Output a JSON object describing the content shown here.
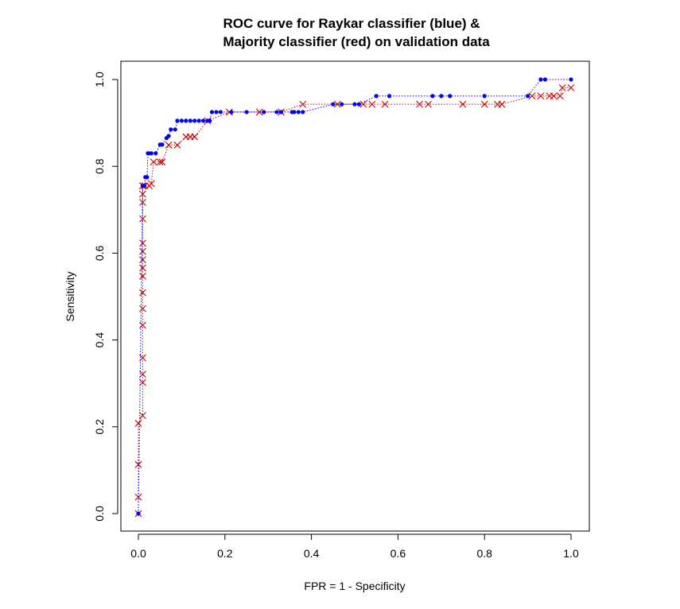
{
  "chart_data": {
    "type": "line",
    "title_line1": "ROC curve for Raykar classifier (blue) &",
    "title_line2": "Majority classifier (red) on validation data",
    "xlabel": "FPR = 1 - Specificity",
    "ylabel": "Sensitivity",
    "xlim": [
      0.0,
      1.0
    ],
    "ylim": [
      0.0,
      1.0
    ],
    "xticks": [
      "0.0",
      "0.2",
      "0.4",
      "0.6",
      "0.8",
      "1.0"
    ],
    "yticks": [
      "0.0",
      "0.2",
      "0.4",
      "0.6",
      "0.8",
      "1.0"
    ],
    "grid": false,
    "series": [
      {
        "color": "#0000ff",
        "marker": "dot",
        "line_style": "dotted",
        "x": [
          0.0,
          0.01,
          0.014,
          0.016,
          0.02,
          0.022,
          0.024,
          0.03,
          0.04,
          0.05,
          0.055,
          0.065,
          0.07,
          0.075,
          0.085,
          0.09,
          0.1,
          0.11,
          0.12,
          0.13,
          0.14,
          0.15,
          0.16,
          0.165,
          0.17,
          0.18,
          0.19,
          0.215,
          0.25,
          0.29,
          0.32,
          0.33,
          0.355,
          0.36,
          0.37,
          0.38,
          0.45,
          0.47,
          0.5,
          0.51,
          0.55,
          0.58,
          0.68,
          0.7,
          0.72,
          0.8,
          0.9,
          0.93,
          0.94,
          1.0
        ],
        "y": [
          0.0,
          0.755,
          0.755,
          0.775,
          0.775,
          0.83,
          0.83,
          0.83,
          0.83,
          0.85,
          0.85,
          0.865,
          0.87,
          0.885,
          0.885,
          0.905,
          0.905,
          0.905,
          0.905,
          0.905,
          0.905,
          0.905,
          0.905,
          0.905,
          0.925,
          0.925,
          0.925,
          0.925,
          0.925,
          0.925,
          0.925,
          0.925,
          0.925,
          0.925,
          0.925,
          0.925,
          0.943,
          0.943,
          0.943,
          0.943,
          0.962,
          0.962,
          0.962,
          0.962,
          0.962,
          0.962,
          0.962,
          1.0,
          1.0,
          1.0
        ]
      },
      {
        "color": "#cc0000",
        "marker": "x",
        "line_style": "dotted",
        "x": [
          0.0,
          0.0,
          0.0,
          0.0,
          0.01,
          0.01,
          0.01,
          0.01,
          0.01,
          0.01,
          0.01,
          0.01,
          0.01,
          0.01,
          0.01,
          0.01,
          0.01,
          0.01,
          0.01,
          0.01,
          0.01,
          0.015,
          0.025,
          0.03,
          0.035,
          0.05,
          0.055,
          0.07,
          0.09,
          0.11,
          0.12,
          0.13,
          0.16,
          0.21,
          0.28,
          0.33,
          0.38,
          0.46,
          0.52,
          0.54,
          0.57,
          0.65,
          0.67,
          0.75,
          0.8,
          0.83,
          0.84,
          0.91,
          0.93,
          0.95,
          0.96,
          0.975,
          0.98,
          1.0
        ],
        "y": [
          0.0,
          0.038,
          0.113,
          0.208,
          0.226,
          0.302,
          0.321,
          0.359,
          0.434,
          0.472,
          0.509,
          0.547,
          0.566,
          0.585,
          0.604,
          0.623,
          0.679,
          0.717,
          0.736,
          0.755,
          0.755,
          0.755,
          0.755,
          0.76,
          0.81,
          0.81,
          0.81,
          0.849,
          0.849,
          0.868,
          0.868,
          0.868,
          0.905,
          0.925,
          0.925,
          0.925,
          0.943,
          0.943,
          0.943,
          0.943,
          0.943,
          0.943,
          0.943,
          0.943,
          0.943,
          0.943,
          0.943,
          0.962,
          0.962,
          0.962,
          0.962,
          0.962,
          0.981,
          0.981
        ]
      }
    ]
  }
}
